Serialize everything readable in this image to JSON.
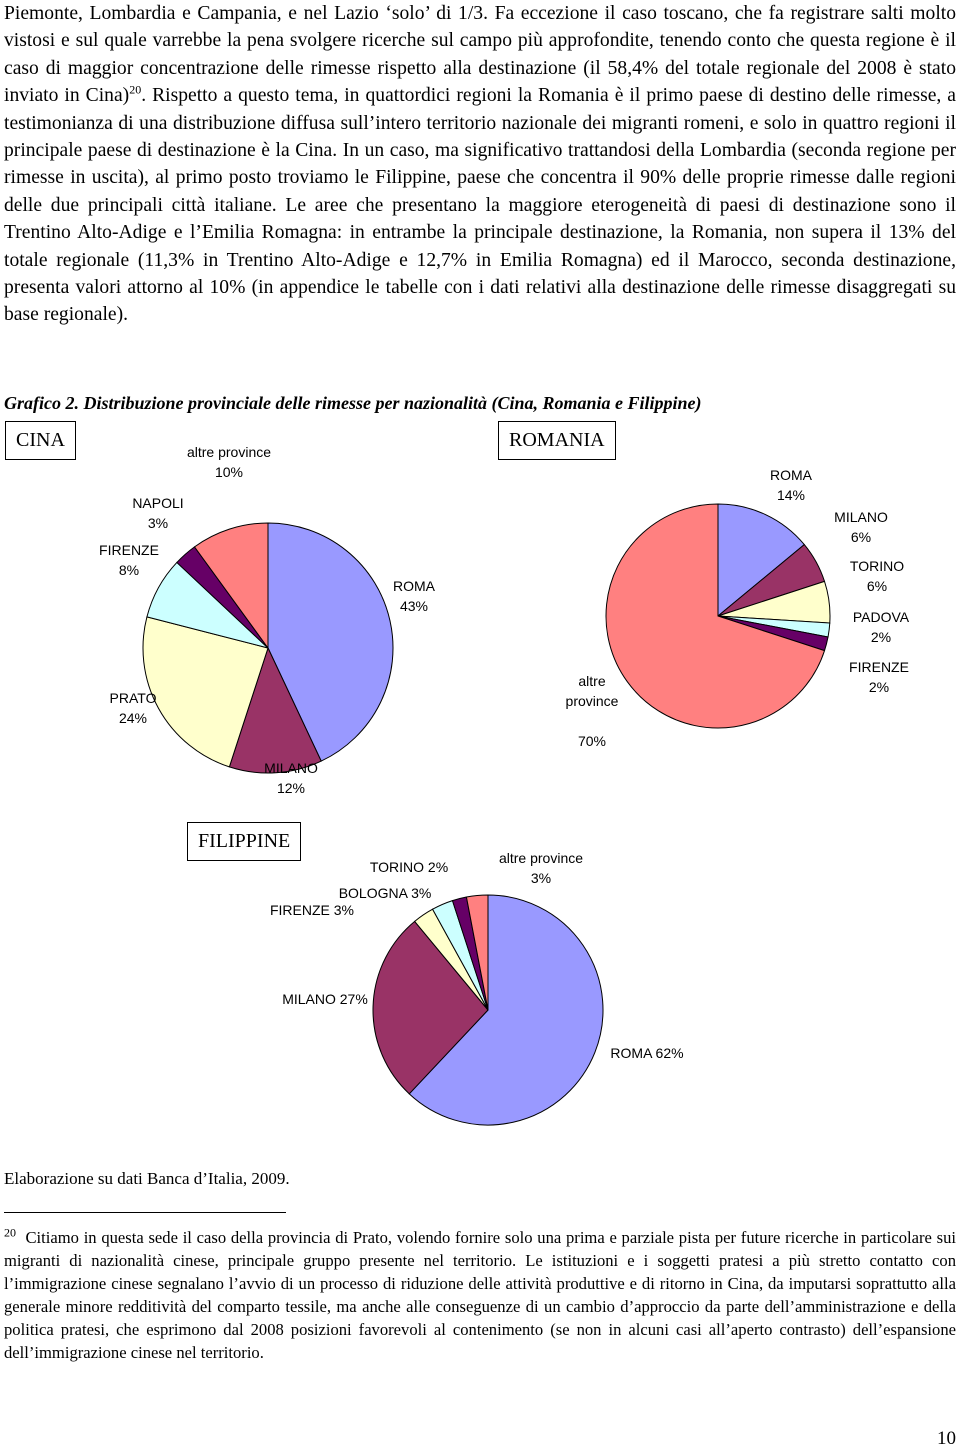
{
  "body": {
    "text_1": "Piemonte, Lombardia e Campania, e nel Lazio ‘solo’ di 1/3. Fa eccezione il caso toscano, che fa registrare salti molto vistosi e sul quale varrebbe la pena svolgere ricerche sul campo più approfondite, tenendo conto che questa regione è il caso di maggior concentrazione delle rimesse rispetto alla destinazione (il 58,4% del totale regionale del 2008 è stato inviato in Cina)",
    "footnote_ref": "20",
    "text_2": ". Rispetto a questo tema, in quattordici regioni la Romania è il primo paese di destino delle rimesse, a testimonianza di una distribuzione diffusa sull’intero territorio nazionale dei migranti romeni, e solo in quattro regioni il principale paese di destinazione è la Cina. In un caso, ma significativo trattandosi della Lombardia (seconda regione per rimesse in uscita), al primo posto troviamo le Filippine, paese che concentra il 90% delle proprie rimesse dalle regioni delle due principali città italiane. Le aree che presentano la maggiore eterogeneità di paesi di destinazione sono il Trentino Alto-Adige e l’Emilia Romagna: in entrambe la principale destinazione, la Romania, non supera il 13% del totale regionale (11,3% in Trentino Alto-Adige e 12,7% in Emilia Romagna) ed il Marocco, seconda destinazione, presenta valori attorno al 10% (in appendice le tabelle con i dati relativi alla destinazione delle rimesse disaggregati su base regionale)."
  },
  "caption": "Grafico 2. Distribuzione provinciale delle rimesse per nazionalità (Cina, Romania e Filippine)",
  "chart_data": [
    {
      "type": "pie",
      "title": "CINA",
      "categories": [
        "ROMA",
        "MILANO",
        "PRATO",
        "FIRENZE",
        "NAPOLI",
        "altre province"
      ],
      "values": [
        43,
        12,
        24,
        8,
        3,
        10
      ],
      "value_labels": [
        "43%",
        "12%",
        "24%",
        "8%",
        "3%",
        "10%"
      ],
      "colors": [
        "#9999ff",
        "#993366",
        "#ffffcc",
        "#ccffff",
        "#660066",
        "#ff8080"
      ]
    },
    {
      "type": "pie",
      "title": "ROMANIA",
      "categories": [
        "ROMA",
        "MILANO",
        "TORINO",
        "PADOVA",
        "FIRENZE",
        "altre province"
      ],
      "values": [
        14,
        6,
        6,
        2,
        2,
        70
      ],
      "value_labels": [
        "14%",
        "6%",
        "6%",
        "2%",
        "2%",
        "70%"
      ],
      "colors": [
        "#9999ff",
        "#993366",
        "#ffffcc",
        "#ccffff",
        "#660066",
        "#ff8080"
      ]
    },
    {
      "type": "pie",
      "title": "FILIPPINE",
      "categories": [
        "ROMA",
        "MILANO",
        "FIRENZE",
        "BOLOGNA",
        "TORINO",
        "altre province"
      ],
      "values": [
        62,
        27,
        3,
        3,
        2,
        3
      ],
      "value_labels": [
        "62%",
        "27%",
        "3%",
        "3%",
        "2%",
        "3%"
      ],
      "colors": [
        "#9999ff",
        "#993366",
        "#ffffcc",
        "#ccffff",
        "#660066",
        "#ff8080"
      ]
    }
  ],
  "source": "Elaborazione su dati Banca d’Italia, 2009.",
  "footnote": {
    "number": "20",
    "text": "Citiamo in questa sede il caso della provincia di Prato, volendo fornire solo una prima e parziale pista per future ricerche in particolare sui migranti di nazionalità cinese, principale gruppo presente nel territorio. Le istituzioni e i soggetti pratesi a più stretto contatto con l’immigrazione cinese segnalano l’avvio di un processo di riduzione delle attività produttive e di ritorno in Cina, da imputarsi soprattutto alla generale minore redditività del comparto tessile, ma anche alle conseguenze di un cambio d’approccio da parte dell’amministrazione e della politica pratesi, che esprimono dal 2008 posizioni favorevoli al contenimento (se non in alcuni casi all’aperto contrasto) dell’espansione dell’immigrazione cinese nel territorio."
  },
  "page_number": "10"
}
